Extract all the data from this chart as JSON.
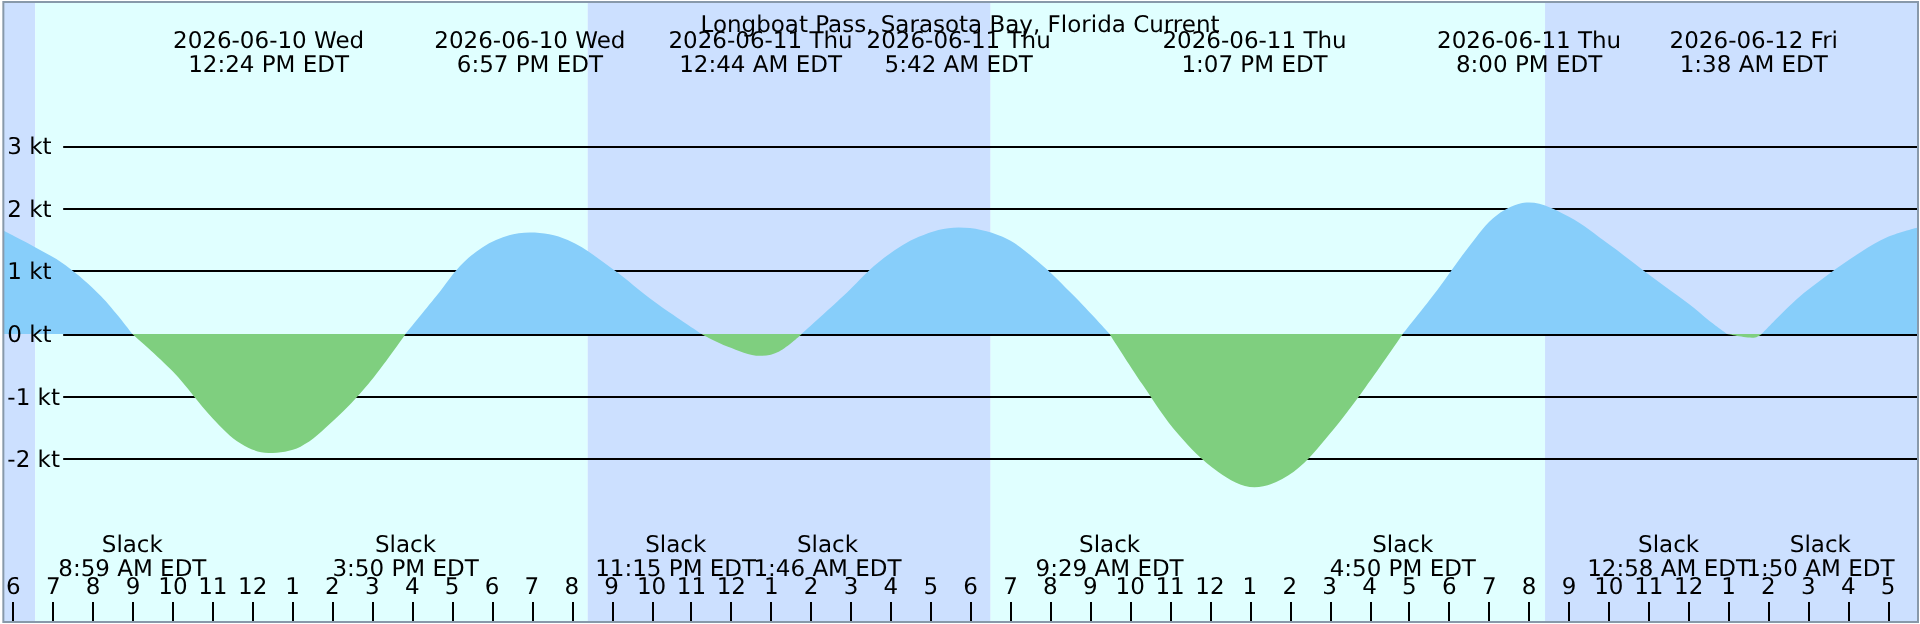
{
  "chart_data": {
    "type": "area",
    "title": "Longboat Pass, Sarasota Bay, Florida Current",
    "xlim": [
      "2026-06-10T05:45",
      "2026-06-12T05:45"
    ],
    "xticks": [
      {
        "value": "2026-06-10T06:00",
        "label": "6"
      },
      {
        "value": "2026-06-10T07:00",
        "label": "7"
      },
      {
        "value": "2026-06-10T08:00",
        "label": "8"
      },
      {
        "value": "2026-06-10T09:00",
        "label": "9"
      },
      {
        "value": "2026-06-10T10:00",
        "label": "10"
      },
      {
        "value": "2026-06-10T11:00",
        "label": "11"
      },
      {
        "value": "2026-06-10T12:00",
        "label": "12"
      },
      {
        "value": "2026-06-10T13:00",
        "label": "1"
      },
      {
        "value": "2026-06-10T14:00",
        "label": "2"
      },
      {
        "value": "2026-06-10T15:00",
        "label": "3"
      },
      {
        "value": "2026-06-10T16:00",
        "label": "4"
      },
      {
        "value": "2026-06-10T17:00",
        "label": "5"
      },
      {
        "value": "2026-06-10T18:00",
        "label": "6"
      },
      {
        "value": "2026-06-10T19:00",
        "label": "7"
      },
      {
        "value": "2026-06-10T20:00",
        "label": "8"
      },
      {
        "value": "2026-06-10T21:00",
        "label": "9"
      },
      {
        "value": "2026-06-10T22:00",
        "label": "10"
      },
      {
        "value": "2026-06-10T23:00",
        "label": "11"
      },
      {
        "value": "2026-06-11T00:00",
        "label": "12"
      },
      {
        "value": "2026-06-11T01:00",
        "label": "1"
      },
      {
        "value": "2026-06-11T02:00",
        "label": "2"
      },
      {
        "value": "2026-06-11T03:00",
        "label": "3"
      },
      {
        "value": "2026-06-11T04:00",
        "label": "4"
      },
      {
        "value": "2026-06-11T05:00",
        "label": "5"
      },
      {
        "value": "2026-06-11T06:00",
        "label": "6"
      },
      {
        "value": "2026-06-11T07:00",
        "label": "7"
      },
      {
        "value": "2026-06-11T08:00",
        "label": "8"
      },
      {
        "value": "2026-06-11T09:00",
        "label": "9"
      },
      {
        "value": "2026-06-11T10:00",
        "label": "10"
      },
      {
        "value": "2026-06-11T11:00",
        "label": "11"
      },
      {
        "value": "2026-06-11T12:00",
        "label": "12"
      },
      {
        "value": "2026-06-11T13:00",
        "label": "1"
      },
      {
        "value": "2026-06-11T14:00",
        "label": "2"
      },
      {
        "value": "2026-06-11T15:00",
        "label": "3"
      },
      {
        "value": "2026-06-11T16:00",
        "label": "4"
      },
      {
        "value": "2026-06-11T17:00",
        "label": "5"
      },
      {
        "value": "2026-06-11T18:00",
        "label": "6"
      },
      {
        "value": "2026-06-11T19:00",
        "label": "7"
      },
      {
        "value": "2026-06-11T20:00",
        "label": "8"
      },
      {
        "value": "2026-06-11T21:00",
        "label": "9"
      },
      {
        "value": "2026-06-11T22:00",
        "label": "10"
      },
      {
        "value": "2026-06-11T23:00",
        "label": "11"
      },
      {
        "value": "2026-06-12T00:00",
        "label": "12"
      },
      {
        "value": "2026-06-12T01:00",
        "label": "1"
      },
      {
        "value": "2026-06-12T02:00",
        "label": "2"
      },
      {
        "value": "2026-06-12T03:00",
        "label": "3"
      },
      {
        "value": "2026-06-12T04:00",
        "label": "4"
      },
      {
        "value": "2026-06-12T05:00",
        "label": "5"
      }
    ],
    "ylim": [
      -4.6,
      5.3
    ],
    "yticks": [
      {
        "value": -2,
        "label": "-2 kt"
      },
      {
        "value": -1,
        "label": "-1 kt"
      },
      {
        "value": 0,
        "label": "0 kt"
      },
      {
        "value": 1,
        "label": "1 kt"
      },
      {
        "value": 2,
        "label": "2 kt"
      },
      {
        "value": 3,
        "label": "3 kt"
      }
    ],
    "grid": "y",
    "bands": [
      {
        "axis": "x",
        "from": "2026-06-10T05:45",
        "to": "2026-06-10T06:33",
        "color": "#cce0ff"
      },
      {
        "axis": "x",
        "from": "2026-06-10T06:33",
        "to": "2026-06-10T20:24",
        "color": "#e0ffff"
      },
      {
        "axis": "x",
        "from": "2026-06-10T20:24",
        "to": "2026-06-11T06:30",
        "color": "#cce0ff"
      },
      {
        "axis": "x",
        "from": "2026-06-11T06:30",
        "to": "2026-06-11T20:24",
        "color": "#e0ffff"
      },
      {
        "axis": "x",
        "from": "2026-06-11T20:24",
        "to": "2026-06-12T05:45",
        "color": "#cce0ff"
      }
    ],
    "series": [
      {
        "color": "#87cefa",
        "x": [
          "2026-06-10T05:45",
          "2026-06-10T06:30",
          "2026-06-10T07:18",
          "2026-06-10T08:12",
          "2026-06-10T08:59"
        ],
        "values": [
          1.65,
          1.4,
          1.1,
          0.6,
          0
        ]
      },
      {
        "color": "#7fcf7f",
        "x": [
          "2026-06-10T08:59",
          "2026-06-10T10:00",
          "2026-06-10T11:00",
          "2026-06-10T11:42",
          "2026-06-10T12:24",
          "2026-06-10T13:12",
          "2026-06-10T14:00",
          "2026-06-10T14:54",
          "2026-06-10T15:50"
        ],
        "values": [
          0,
          -0.6,
          -1.35,
          -1.75,
          -1.9,
          -1.8,
          -1.4,
          -0.8,
          0
        ]
      },
      {
        "color": "#87cefa",
        "x": [
          "2026-06-10T15:50",
          "2026-06-10T16:36",
          "2026-06-10T17:18",
          "2026-06-10T18:06",
          "2026-06-10T18:57",
          "2026-06-10T19:54",
          "2026-06-10T21:00",
          "2026-06-10T22:06",
          "2026-06-10T23:15"
        ],
        "values": [
          0,
          0.6,
          1.15,
          1.5,
          1.62,
          1.5,
          1.05,
          0.5,
          0
        ]
      },
      {
        "color": "#7fcf7f",
        "x": [
          "2026-06-10T23:15",
          "2026-06-10T23:54",
          "2026-06-11T00:44",
          "2026-06-11T01:12",
          "2026-06-11T01:46"
        ],
        "values": [
          0,
          -0.2,
          -0.35,
          -0.28,
          0
        ]
      },
      {
        "color": "#87cefa",
        "x": [
          "2026-06-11T01:46",
          "2026-06-11T02:48",
          "2026-06-11T03:42",
          "2026-06-11T04:42",
          "2026-06-11T05:42",
          "2026-06-11T06:48",
          "2026-06-11T07:42",
          "2026-06-11T08:36",
          "2026-06-11T09:29"
        ],
        "values": [
          0,
          0.6,
          1.15,
          1.55,
          1.7,
          1.55,
          1.15,
          0.6,
          0
        ]
      },
      {
        "color": "#7fcf7f",
        "x": [
          "2026-06-11T09:29",
          "2026-06-11T10:18",
          "2026-06-11T11:12",
          "2026-06-11T12:12",
          "2026-06-11T13:07",
          "2026-06-11T14:06",
          "2026-06-11T15:00",
          "2026-06-11T15:54",
          "2026-06-11T16:50"
        ],
        "values": [
          0,
          -0.8,
          -1.6,
          -2.2,
          -2.45,
          -2.2,
          -1.6,
          -0.85,
          0
        ]
      },
      {
        "color": "#87cefa",
        "x": [
          "2026-06-11T16:50",
          "2026-06-11T17:42",
          "2026-06-11T18:30",
          "2026-06-11T19:12",
          "2026-06-11T20:00",
          "2026-06-11T21:00",
          "2026-06-11T22:00",
          "2026-06-11T23:00",
          "2026-06-12T00:00",
          "2026-06-12T00:30",
          "2026-06-12T00:58"
        ],
        "values": [
          0,
          0.7,
          1.4,
          1.9,
          2.1,
          1.87,
          1.43,
          0.95,
          0.48,
          0.22,
          0
        ]
      },
      {
        "color": "#7fcf7f",
        "x": [
          "2026-06-12T00:58",
          "2026-06-12T01:38",
          "2026-06-12T01:50"
        ],
        "values": [
          0,
          -0.06,
          0
        ]
      },
      {
        "color": "#87cefa",
        "x": [
          "2026-06-12T01:50",
          "2026-06-12T02:42",
          "2026-06-12T03:30",
          "2026-06-12T04:18",
          "2026-06-12T05:00",
          "2026-06-12T05:45"
        ],
        "values": [
          0,
          0.55,
          0.95,
          1.3,
          1.55,
          1.7
        ]
      }
    ],
    "annotations": [
      "2026-06-10 Wed\n12:24 PM EDT",
      "2026-06-10 Wed\n6:57 PM EDT",
      "2026-06-11 Thu\n12:44 AM EDT",
      "2026-06-11 Thu\n5:42 AM EDT",
      "2026-06-11 Thu\n1:07 PM EDT",
      "2026-06-11 Thu\n8:00 PM EDT",
      "2026-06-12 Fri\n1:38 AM EDT",
      "Slack\n8:59 AM EDT",
      "Slack\n3:50 PM EDT",
      "Slack\n11:15 PM EDT",
      "Slack\n1:46 AM EDT",
      "Slack\n9:29 AM EDT",
      "Slack\n4:50 PM EDT",
      "Slack\n12:58 AM EDT",
      "Slack\n1:50 AM EDT"
    ]
  }
}
